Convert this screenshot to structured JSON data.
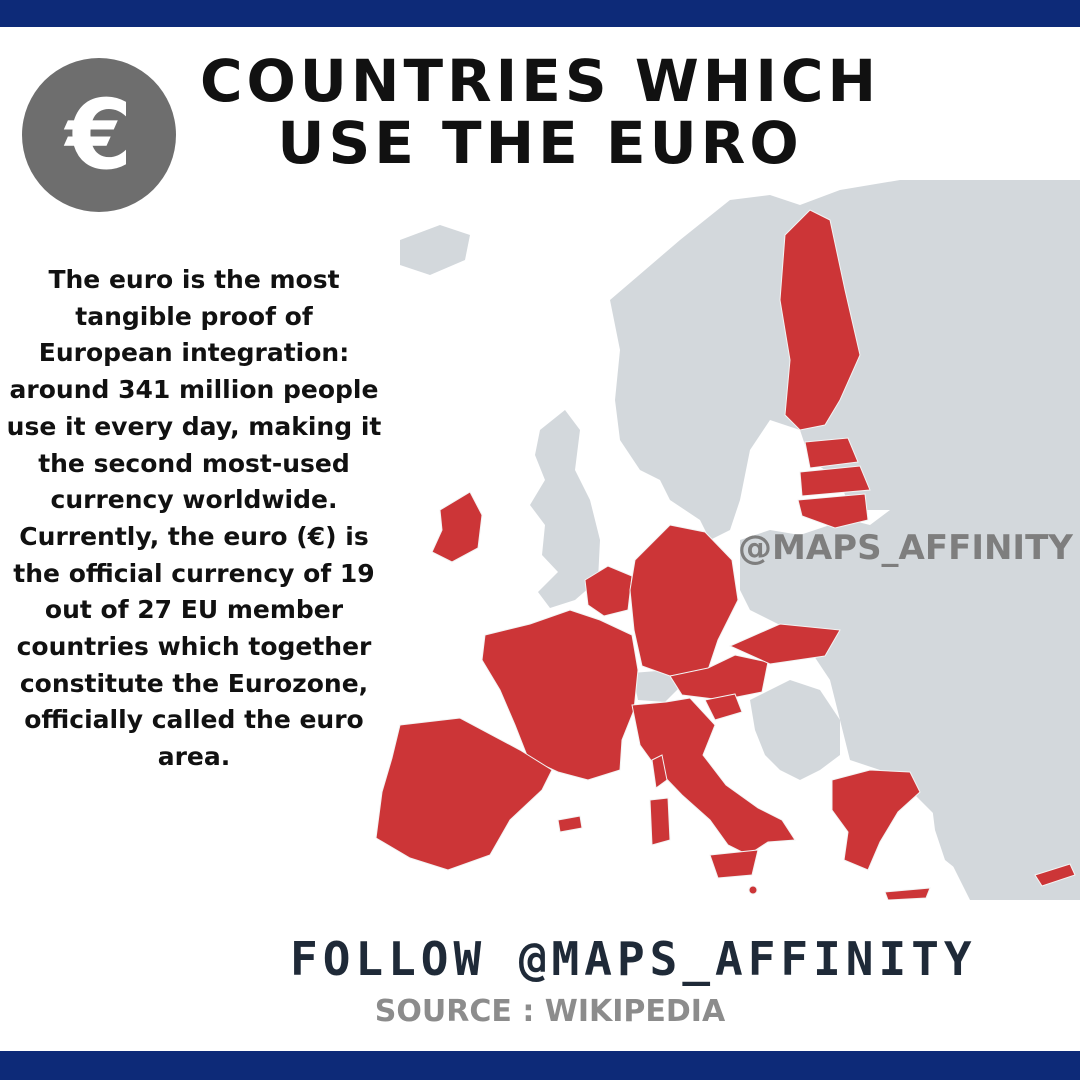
{
  "title": {
    "line1": "COUNTRIES WHICH",
    "line2": "USE THE EURO"
  },
  "badge": {
    "symbol": "€",
    "icon": "euro-coin-icon"
  },
  "description": "The euro is the most tangible proof of European integration: around 341 million people use it every day, making it the second most-used currency worldwide. Currently, the euro (€) is the official currency of 19 out of 27 EU member countries which together constitute the Eurozone, officially called the euro area.",
  "map": {
    "watermark": "@MAPS_AFFINITY",
    "colors": {
      "eurozone": "#cc3537",
      "other_land": "#d3d8dc",
      "sea": "#ffffff",
      "border": "#f3f3f3"
    }
  },
  "footer": {
    "follow": "FOLLOW @MAPS_AFFINITY",
    "source": "SOURCE : WIKIPEDIA"
  },
  "frame": {
    "band_color": "#0d2a78"
  }
}
